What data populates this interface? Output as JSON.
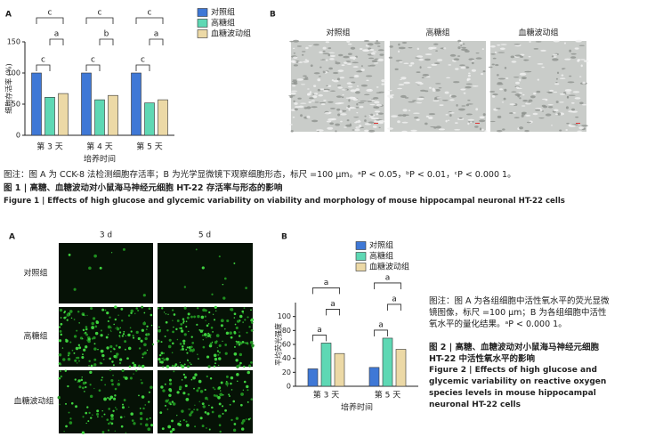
{
  "chart_data": [
    {
      "type": "bar",
      "y_label": "细胞存活率 (%)",
      "x_label": "培养时间",
      "categories": [
        "第 3 天",
        "第 4 天",
        "第 5 天"
      ],
      "series": [
        {
          "name": "对照组",
          "color": "#3f78d6",
          "values": [
            100,
            100,
            100
          ]
        },
        {
          "name": "高糖组",
          "color": "#5ed8b4",
          "values": [
            61,
            57,
            52
          ]
        },
        {
          "name": "血糖波动组",
          "color": "#ecd9a6",
          "values": [
            67,
            64,
            57
          ]
        }
      ],
      "ylim": [
        0,
        150
      ],
      "yticks": [
        0,
        50,
        100,
        150
      ],
      "significance": [
        [
          "c",
          "a",
          "c"
        ],
        [
          "c",
          "b",
          "c"
        ],
        [
          "c",
          "a",
          "c"
        ]
      ]
    },
    {
      "type": "bar",
      "y_label": "平均荧光强度",
      "x_label": "培养时间",
      "categories": [
        "第 3 天",
        "第 5 天"
      ],
      "series": [
        {
          "name": "对照组",
          "color": "#3f78d6",
          "values": [
            25,
            27
          ]
        },
        {
          "name": "高糖组",
          "color": "#5ed8b4",
          "values": [
            62,
            69
          ]
        },
        {
          "name": "血糖波动组",
          "color": "#ecd9a6",
          "values": [
            47,
            53
          ]
        }
      ],
      "ylim": [
        0,
        120
      ],
      "yticks": [
        0,
        20,
        40,
        60,
        80,
        100
      ],
      "significance": [
        [
          "a",
          "a",
          "a"
        ],
        [
          "a",
          "a",
          "a"
        ]
      ]
    }
  ],
  "figure1": {
    "panel_a": "A",
    "panel_b": "B",
    "image_titles": [
      "对照组",
      "高糖组",
      "血糖波动组"
    ],
    "note": "图注：图 A 为 CCK-8 法检测细胞存活率；B 为光学显微镜下观察细胞形态，标尺 =100 μm。ᵃP < 0.05，ᵇP < 0.01，ᶜP < 0.000 1。",
    "title_cn": "图 1 | 高糖、血糖波动对小鼠海马神经元细胞 HT-22 存活率与形态的影响",
    "title_en": "Figure 1 | Effects of high glucose and glycemic variability on viability and morphology of mouse hippocampal neuronal HT-22 cells"
  },
  "figure2": {
    "panel_a": "A",
    "panel_b": "B",
    "columns": [
      "3 d",
      "5 d"
    ],
    "rows": [
      "对照组",
      "高糖组",
      "血糖波动组"
    ],
    "note": "图注：图 A 为各组细胞中活性氧水平的荧光显微镜图像，标尺 =100 μm；B 为各组细胞中活性氧水平的量化结果。ᵃP < 0.000 1。",
    "title_cn": "图 2 | 高糖、血糖波动对小鼠海马神经元细胞 HT-22 中活性氧水平的影响",
    "title_en": "Figure 2 | Effects of high glucose and glycemic variability on reactive oxygen species levels in mouse hippocampal neuronal HT-22 cells"
  }
}
